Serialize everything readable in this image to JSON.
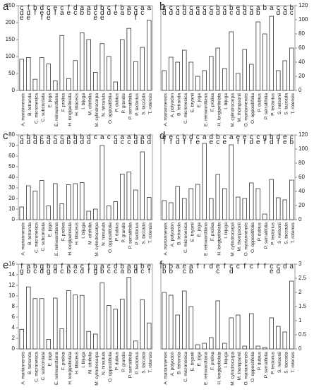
{
  "chart_data": [
    {
      "type": "bar",
      "title": "a",
      "axis_side": "left",
      "color": "#ffffff",
      "ylim": [
        0,
        250
      ],
      "yticks": [
        0,
        50,
        100,
        150,
        200,
        250
      ],
      "categories": [
        "A. mariannensis",
        "B. tetranda",
        "C. micronesica",
        "C. subcordata",
        "E. joga",
        "E. reinwardtiana",
        "F. prolixa",
        "H. longipetiolata",
        "H. tiliaceus",
        "I. bijuga",
        "M. citrifolia",
        "M. cylindrocarpa",
        "N. hirsutula",
        "O. oppositifolia",
        "P. dubius",
        "P. grandis",
        "P. serratifolia",
        "P. tectorius",
        "S. taccada",
        "T. rotensis"
      ],
      "values": [
        92,
        97,
        33,
        97,
        78,
        28,
        162,
        35,
        88,
        170,
        150,
        53,
        138,
        100,
        25,
        150,
        183,
        85,
        127,
        207
      ],
      "letters": [
        "cde",
        "fde",
        "bf",
        "def",
        "cde",
        "ef",
        "ca",
        "fe",
        "dc",
        "ab",
        "ab",
        "dce",
        "bde",
        "cd",
        "fe",
        "ba",
        "ab",
        "cdf",
        "ac",
        "a"
      ]
    },
    {
      "type": "bar",
      "title": "b",
      "axis_side": "right",
      "color": "#ffffff",
      "ylim": [
        0,
        120
      ],
      "yticks": [
        0,
        20,
        40,
        60,
        80,
        100,
        120
      ],
      "categories": [
        "A. mariannensis",
        "A. polyodon",
        "B. tetranda",
        "C. micronesica",
        "E. bryanii",
        "E. joga",
        "E. reinwardtiana",
        "F. prolixa",
        "H. longipetiolata",
        "I. bijuga",
        "M. cylindrocarpa",
        "M. thompsonii",
        "O. mariannensis",
        "O. oppositifolia",
        "P. dubius",
        "P. serratifolia",
        "P. tectorius",
        "S. nelsonii",
        "S. taccada",
        "T. rotensis"
      ],
      "values": [
        28,
        47,
        40,
        57,
        40,
        20,
        28,
        48,
        60,
        31,
        83,
        24,
        58,
        37,
        97,
        80,
        105,
        28,
        42,
        60
      ],
      "letters": [
        "cd",
        "cd",
        "cd",
        "bd",
        "cd",
        "ed",
        "cd",
        "cd",
        "bd",
        "cd",
        "bc",
        "ed",
        "bd",
        "cd",
        "ab",
        "b",
        "a",
        "cd",
        "cd",
        "bc"
      ]
    },
    {
      "type": "bar",
      "title": "c",
      "axis_side": "left",
      "color": "#ffffff",
      "ylim": [
        0,
        80
      ],
      "yticks": [
        0,
        10,
        20,
        30,
        40,
        50,
        60,
        70,
        80
      ],
      "categories": [
        "A. mariannensis",
        "B. tetranda",
        "C. micronesica",
        "C. subcordata",
        "E. joga",
        "E. reinwardtiana",
        "F. prolixa",
        "H. longipetiolata",
        "H. tiliaceus",
        "I. bijuga",
        "M. citrifolia",
        "M. cylindrocarpa",
        "N. hirsutula",
        "O. oppositifolia",
        "P. dubius",
        "P. grandis",
        "P. serratifolia",
        "P. tectorius",
        "S. taccada",
        "T. rotensis"
      ],
      "values": [
        12,
        32,
        27,
        37,
        13,
        34,
        15,
        33,
        34,
        35,
        8,
        10,
        70,
        13,
        17,
        43,
        45,
        28,
        64,
        21
      ],
      "letters": [
        "cd",
        "bd",
        "bd",
        "cb",
        "ad",
        "cd",
        "cd",
        "ab",
        "bd",
        "bd",
        "dd",
        "c",
        "a",
        "c",
        "cd",
        "ac",
        "ac",
        "bd",
        "ab",
        "dd"
      ]
    },
    {
      "type": "bar",
      "title": "d",
      "axis_side": "right",
      "color": "#ffffff",
      "ylim": [
        0,
        120
      ],
      "yticks": [
        0,
        20,
        40,
        60,
        80,
        100,
        120
      ],
      "categories": [
        "A. mariannensis",
        "A. polyodon",
        "B. tetranda",
        "C. micronesica",
        "E. bryanii",
        "E. joga",
        "E. reinwardtiana",
        "F. prolixa",
        "H. longipetiolata",
        "I. bijuga",
        "M. cylindrocarpa",
        "M. thompsonii",
        "O. mariannensis",
        "O. oppositifolia",
        "P. dubius",
        "P. serratifolia",
        "P. tectorius",
        "S. nelsonii",
        "S. taccada",
        "T. rotensis"
      ],
      "values": [
        27,
        24,
        47,
        30,
        44,
        50,
        108,
        30,
        64,
        44,
        106,
        32,
        30,
        52,
        44,
        8,
        57,
        31,
        28,
        56
      ],
      "letters": [
        "ef",
        "ef",
        "cd",
        "bf",
        "df",
        "ce",
        "a",
        "de",
        "bc",
        "ce",
        "a",
        "ef",
        "ef",
        "cd",
        "ce",
        "gf",
        "bd",
        "df",
        "ee",
        "cb"
      ]
    },
    {
      "type": "bar",
      "title": "e",
      "axis_side": "left",
      "color": "#ffffff",
      "ylim": [
        0,
        16
      ],
      "yticks": [
        0,
        2,
        4,
        6,
        8,
        10,
        12,
        14,
        16
      ],
      "categories": [
        "A. mariannensis",
        "B. tetranda",
        "C. micronesica",
        "C. subcordata",
        "E. joga",
        "E. reinwardtiana",
        "F. prolixa",
        "H. longipetiolata",
        "H. tiliaceus",
        "I. bijuga",
        "M. citrifolia",
        "M. cylindrocarpa",
        "N. hirsutula",
        "O. oppositifolia",
        "P. dubius",
        "P. grandis",
        "P. serratifolia",
        "P. tectorius",
        "S. taccada",
        "T. rotensis"
      ],
      "values": [
        3.7,
        11.7,
        9.5,
        9.5,
        1.8,
        9.6,
        3.8,
        11,
        10.2,
        10.1,
        3.3,
        2.8,
        12.5,
        8.2,
        7.5,
        9.4,
        13.5,
        1.5,
        9.3,
        4.9
      ],
      "letters": [
        "fg",
        "ab",
        "bc",
        "gd",
        "bg",
        "gd",
        "fc",
        "ab",
        "ac",
        "cd",
        "ff",
        "gg",
        "ab",
        "cc",
        "dc",
        "ba",
        "ab",
        "gd",
        "bc",
        "ef"
      ]
    },
    {
      "type": "bar",
      "title": "f",
      "axis_side": "right",
      "color": "#ffffff",
      "ylim": [
        0,
        3
      ],
      "yticks": [
        0,
        0.5,
        1,
        1.5,
        2,
        2.5,
        3
      ],
      "categories": [
        "A. mariannensis",
        "A. polyodon",
        "B. tetranda",
        "C. micronesica",
        "E. bryanii",
        "E. joga",
        "E. reinwardtiana",
        "F. prolixa",
        "H. longipetiolata",
        "I. bijuga",
        "M. cylindrocarpa",
        "M. thompsonii",
        "O. mariannensis",
        "O. oppositifolia",
        "P. dubius",
        "P. serratifolia",
        "P. tectorius",
        "S. nelsonii",
        "S. taccada",
        "T. rotensis"
      ],
      "values": [
        2,
        1.9,
        1.2,
        2.05,
        1.5,
        0.15,
        0.2,
        0.4,
        1.7,
        0.2,
        1.1,
        1.2,
        0.1,
        1.25,
        0.1,
        0.05,
        1.1,
        0.8,
        0.6,
        2.4
      ],
      "letters": [
        "bb",
        "bb",
        "a",
        "ec",
        "ab",
        "f",
        "r",
        "d",
        "ec",
        "f",
        "cd",
        "c",
        "f",
        "c",
        "f",
        "f",
        "ce",
        "cd",
        "d",
        "a"
      ]
    }
  ]
}
